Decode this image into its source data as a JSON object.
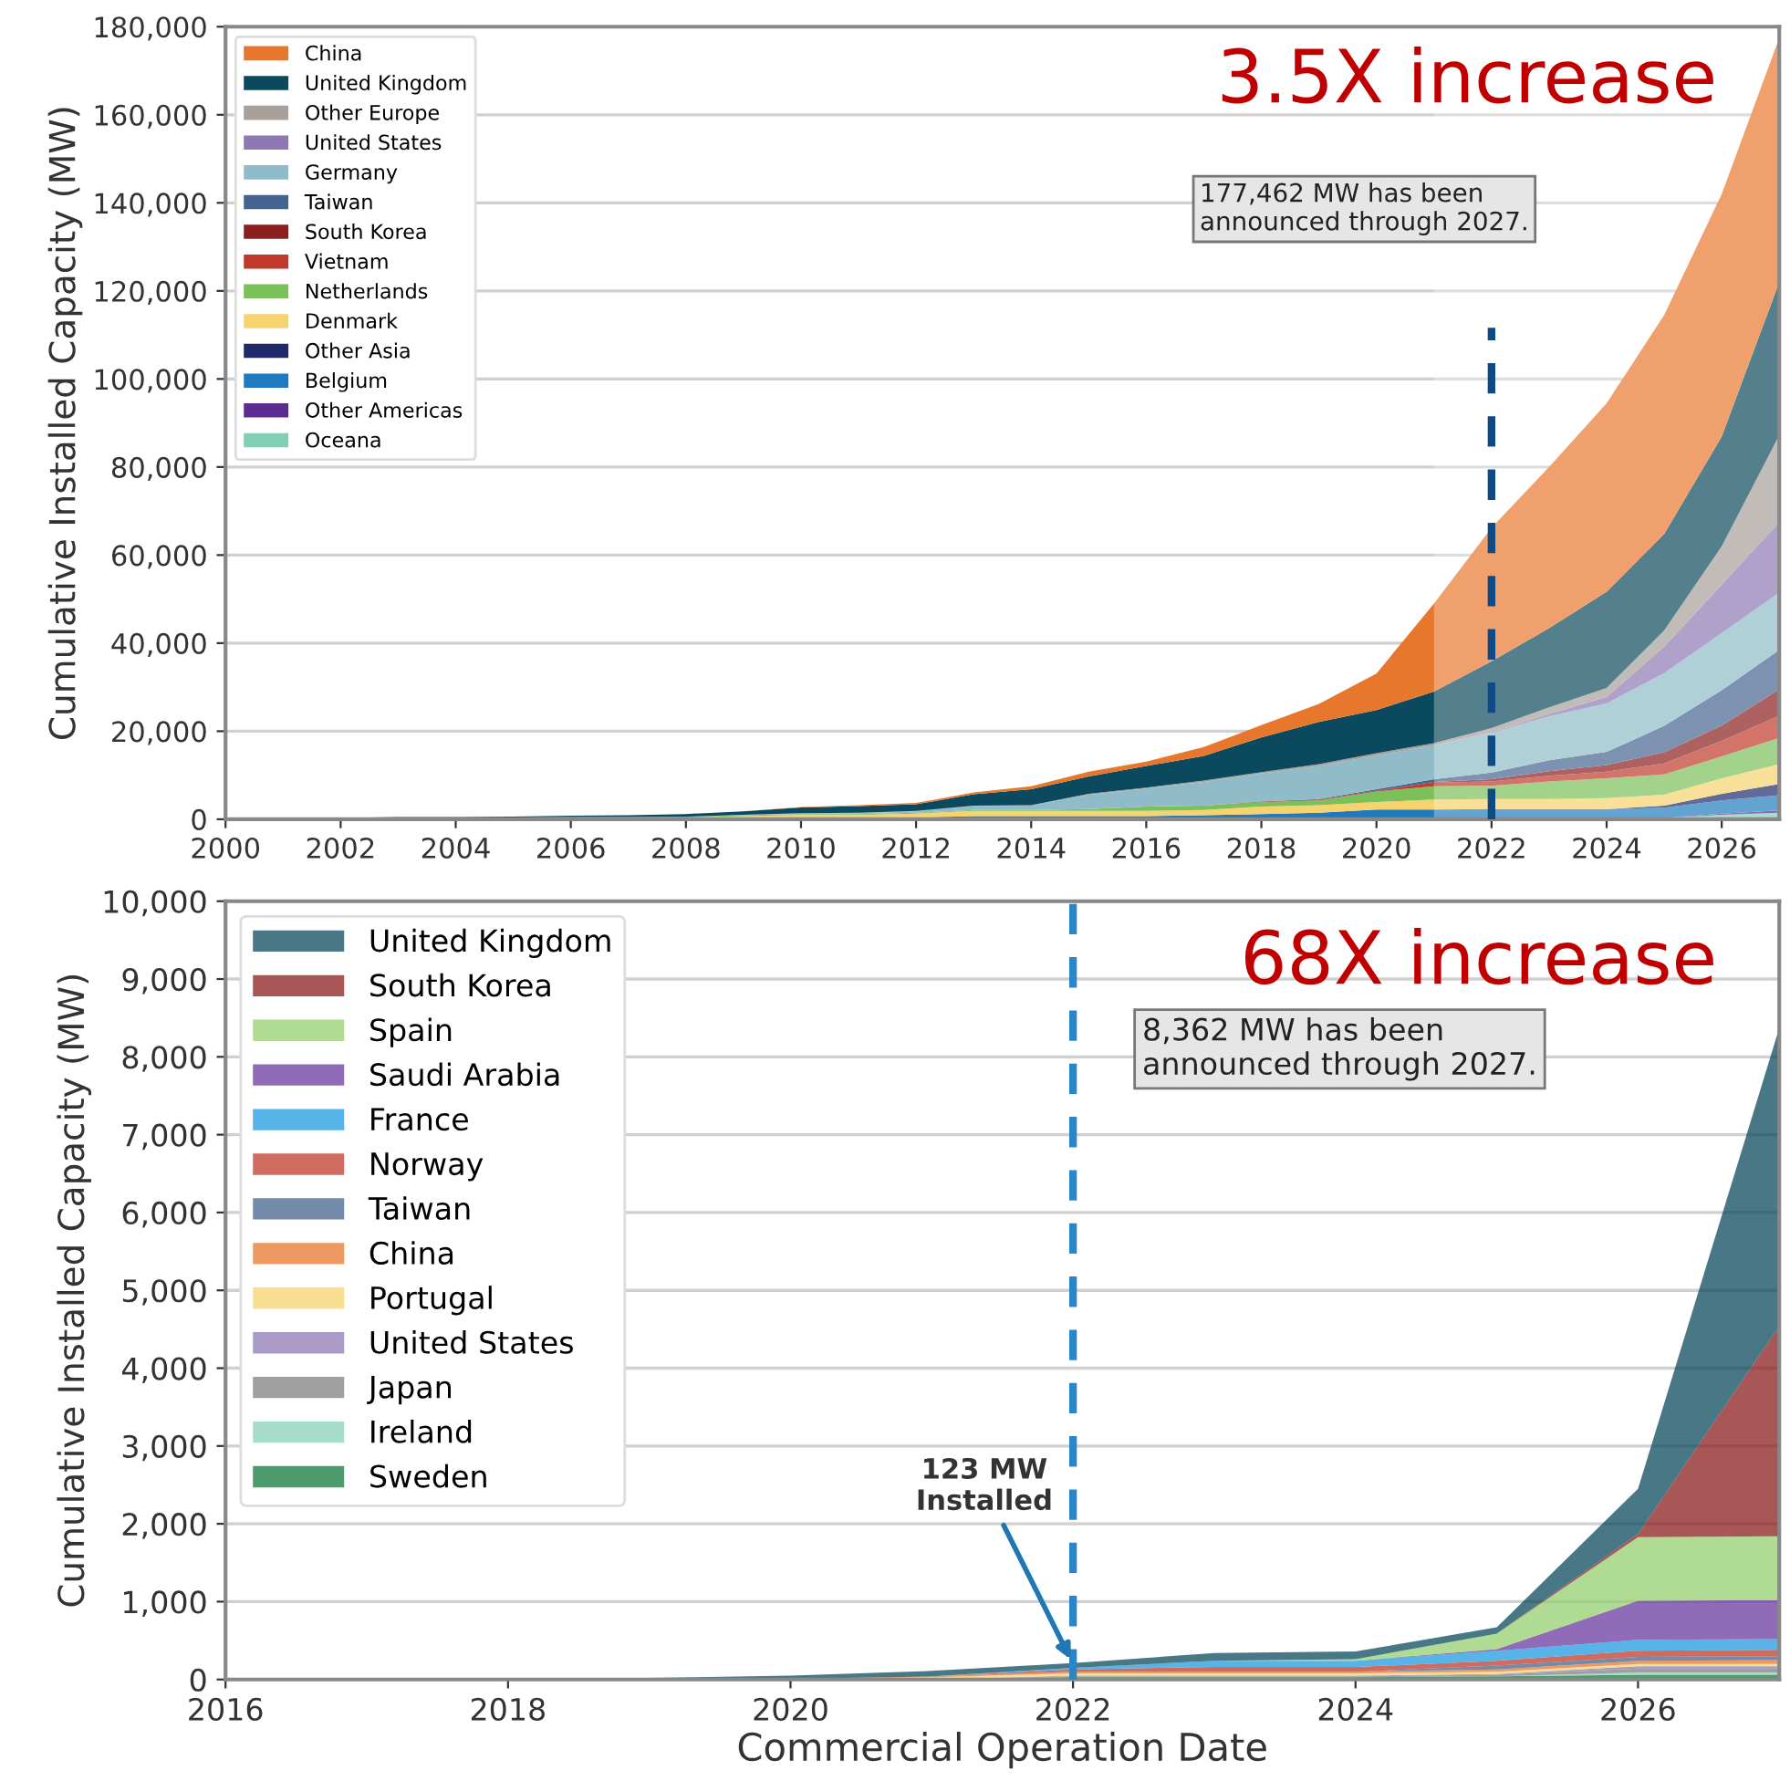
{
  "chart_data": [
    {
      "type": "area",
      "stacked": true,
      "ylabel": "Cumulative Installed Capacity (MW)",
      "x": [
        2000,
        2001,
        2002,
        2003,
        2004,
        2005,
        2006,
        2007,
        2008,
        2009,
        2010,
        2011,
        2012,
        2013,
        2014,
        2015,
        2016,
        2017,
        2018,
        2019,
        2020,
        2021,
        2022,
        2023,
        2024,
        2025,
        2026,
        2027
      ],
      "series": [
        {
          "name": "Oceana",
          "color": "#7fd0b6",
          "values": [
            0,
            0,
            0,
            0,
            0,
            0,
            0,
            0,
            0,
            0,
            0,
            0,
            0,
            0,
            0,
            0,
            0,
            0,
            0,
            0,
            0,
            0,
            0,
            0,
            0,
            300,
            1000,
            1500
          ]
        },
        {
          "name": "Other Americas",
          "color": "#5b2d91",
          "values": [
            0,
            0,
            0,
            0,
            0,
            0,
            0,
            0,
            0,
            0,
            0,
            0,
            0,
            0,
            0,
            0,
            0,
            0,
            0,
            0,
            0,
            0,
            0,
            0,
            0,
            0,
            300,
            500
          ]
        },
        {
          "name": "Belgium",
          "color": "#1f7bbf",
          "values": [
            0,
            0,
            0,
            0,
            0,
            0,
            0,
            0,
            0,
            0,
            200,
            200,
            400,
            700,
            700,
            700,
            700,
            900,
            1200,
            1500,
            2200,
            2200,
            2300,
            2300,
            2300,
            2300,
            3000,
            3500
          ]
        },
        {
          "name": "Other Asia",
          "color": "#1f2a6b",
          "values": [
            0,
            0,
            0,
            0,
            0,
            0,
            0,
            0,
            0,
            0,
            0,
            0,
            0,
            0,
            0,
            0,
            0,
            0,
            0,
            0,
            0,
            0,
            0,
            0,
            0,
            500,
            1500,
            2500
          ]
        },
        {
          "name": "Denmark",
          "color": "#f6d36e",
          "values": [
            100,
            100,
            200,
            400,
            400,
            400,
            400,
            400,
            400,
            700,
            800,
            800,
            900,
            1200,
            1200,
            1200,
            1200,
            1200,
            1700,
            1700,
            1700,
            2300,
            2300,
            2300,
            2500,
            2500,
            3500,
            4500
          ]
        },
        {
          "name": "Netherlands",
          "color": "#7cc05a",
          "values": [
            0,
            0,
            0,
            0,
            0,
            0,
            100,
            100,
            200,
            200,
            200,
            200,
            200,
            200,
            200,
            400,
            1000,
            1000,
            1000,
            1100,
            2400,
            3000,
            3000,
            4000,
            4500,
            4600,
            5000,
            6000
          ]
        },
        {
          "name": "Vietnam",
          "color": "#c0392b",
          "values": [
            0,
            0,
            0,
            0,
            0,
            0,
            0,
            0,
            0,
            0,
            0,
            0,
            0,
            0,
            0,
            0,
            0,
            0,
            0,
            100,
            100,
            800,
            1000,
            1300,
            1500,
            2500,
            3500,
            5000
          ]
        },
        {
          "name": "South Korea",
          "color": "#8b1e1e",
          "values": [
            0,
            0,
            0,
            0,
            0,
            0,
            0,
            0,
            0,
            0,
            0,
            0,
            0,
            0,
            0,
            0,
            0,
            0,
            100,
            100,
            100,
            200,
            500,
            1000,
            1500,
            2500,
            3500,
            6000
          ]
        },
        {
          "name": "Taiwan",
          "color": "#46638f",
          "values": [
            0,
            0,
            0,
            0,
            0,
            0,
            0,
            0,
            0,
            0,
            0,
            0,
            0,
            0,
            0,
            0,
            0,
            0,
            0,
            100,
            300,
            600,
            1500,
            2500,
            3000,
            6000,
            8000,
            9000
          ]
        },
        {
          "name": "Germany",
          "color": "#8fbcc8",
          "values": [
            0,
            0,
            0,
            0,
            0,
            0,
            0,
            0,
            0,
            100,
            100,
            200,
            300,
            900,
            1000,
            3300,
            4100,
            5400,
            6400,
            7500,
            7700,
            7700,
            9000,
            10000,
            11000,
            12000,
            13000,
            13000
          ]
        },
        {
          "name": "United States",
          "color": "#8e79b3",
          "values": [
            0,
            0,
            0,
            0,
            0,
            0,
            0,
            0,
            0,
            0,
            0,
            0,
            0,
            0,
            0,
            0,
            0,
            0,
            0,
            0,
            0,
            0,
            100,
            500,
            1500,
            6000,
            11000,
            16000
          ]
        },
        {
          "name": "Other Europe",
          "color": "#a8a09a",
          "values": [
            0,
            0,
            0,
            0,
            0,
            0,
            0,
            0,
            0,
            0,
            100,
            100,
            100,
            100,
            100,
            200,
            200,
            300,
            300,
            400,
            500,
            500,
            1000,
            1500,
            2000,
            3700,
            8700,
            19700
          ]
        },
        {
          "name": "United Kingdom",
          "color": "#0b4a5e",
          "values": [
            100,
            100,
            100,
            100,
            100,
            200,
            300,
            400,
            600,
            800,
            1300,
            1500,
            1500,
            2600,
            3600,
            3900,
            4900,
            5600,
            7900,
            9600,
            9800,
            11700,
            15200,
            18000,
            21900,
            21900,
            24900,
            34800
          ]
        },
        {
          "name": "China",
          "color": "#e8772e",
          "values": [
            0,
            0,
            0,
            0,
            0,
            0,
            0,
            0,
            0,
            0,
            100,
            200,
            300,
            400,
            700,
            1100,
            1000,
            2000,
            2800,
            4100,
            8300,
            20000,
            30300,
            36600,
            42800,
            49700,
            55100,
            55462
          ]
        }
      ],
      "xlim": [
        2000,
        2027
      ],
      "xticks": [
        2000,
        2002,
        2004,
        2006,
        2008,
        2010,
        2012,
        2014,
        2016,
        2018,
        2020,
        2022,
        2024,
        2026
      ],
      "ylim": [
        0,
        180000
      ],
      "yticks": [
        {
          "value": 0,
          "label": "0"
        },
        {
          "value": 20000,
          "label": "20,000"
        },
        {
          "value": 40000,
          "label": "40,000"
        },
        {
          "value": 60000,
          "label": "60,000"
        },
        {
          "value": 80000,
          "label": "80,000"
        },
        {
          "value": 100000,
          "label": "100,000"
        },
        {
          "value": 120000,
          "label": "120,000"
        },
        {
          "value": 140000,
          "label": "140,000"
        },
        {
          "value": 160000,
          "label": "160,000"
        },
        {
          "value": 180000,
          "label": "180,000"
        }
      ],
      "grid": "y",
      "legend": "top left",
      "ref_lines": [
        {
          "axis": "x",
          "value": 2022,
          "color": "#0d4a86",
          "line_style": "dashed"
        }
      ],
      "bands": [
        {
          "axis": "x",
          "from": 2021,
          "to": 2027,
          "color": "#ffffff"
        }
      ],
      "annotations": [
        "3.5X increase",
        "177,462 MW has been\nannounced through 2027."
      ]
    },
    {
      "type": "area",
      "stacked": true,
      "ylabel": "Cumulative Installed Capacity (MW)",
      "xlabel": "Commercial Operation Date",
      "x": [
        2016,
        2017,
        2018,
        2019,
        2020,
        2021,
        2022,
        2023,
        2024,
        2025,
        2026,
        2027
      ],
      "series": [
        {
          "name": "Sweden",
          "color": "#137a3e",
          "values": [
            0,
            0,
            0,
            0,
            0,
            0,
            30,
            30,
            30,
            40,
            60,
            60
          ]
        },
        {
          "name": "Ireland",
          "color": "#88d1b8",
          "values": [
            0,
            0,
            0,
            0,
            0,
            0,
            0,
            0,
            0,
            0,
            30,
            30
          ]
        },
        {
          "name": "Japan",
          "color": "#7f7f7f",
          "values": [
            0,
            0,
            0,
            0,
            0,
            0,
            10,
            10,
            10,
            20,
            50,
            50
          ]
        },
        {
          "name": "United States",
          "color": "#8e79b3",
          "values": [
            0,
            0,
            0,
            0,
            0,
            0,
            10,
            10,
            10,
            10,
            30,
            30
          ]
        },
        {
          "name": "Portugal",
          "color": "#f6d36e",
          "values": [
            0,
            0,
            0,
            0,
            0,
            30,
            30,
            30,
            30,
            30,
            30,
            30
          ]
        },
        {
          "name": "China",
          "color": "#e8772e",
          "values": [
            0,
            0,
            0,
            0,
            10,
            10,
            20,
            20,
            20,
            30,
            40,
            50
          ]
        },
        {
          "name": "Taiwan",
          "color": "#46638f",
          "values": [
            0,
            0,
            0,
            0,
            0,
            0,
            0,
            0,
            0,
            50,
            50,
            50
          ]
        },
        {
          "name": "Norway",
          "color": "#c0392b",
          "values": [
            0,
            0,
            0,
            0,
            0,
            0,
            30,
            60,
            60,
            60,
            80,
            80
          ]
        },
        {
          "name": "France",
          "color": "#1e9be0",
          "values": [
            0,
            0,
            0,
            0,
            0,
            0,
            20,
            80,
            80,
            130,
            140,
            140
          ]
        },
        {
          "name": "Saudi Arabia",
          "color": "#6a3aa0",
          "values": [
            0,
            0,
            0,
            0,
            0,
            0,
            0,
            0,
            0,
            20,
            500,
            500
          ]
        },
        {
          "name": "Spain",
          "color": "#95cf6e",
          "values": [
            0,
            0,
            0,
            0,
            0,
            0,
            0,
            0,
            20,
            200,
            820,
            820
          ]
        },
        {
          "name": "South Korea",
          "color": "#8b1e1e",
          "values": [
            0,
            0,
            0,
            0,
            0,
            0,
            0,
            0,
            0,
            0,
            40,
            2700
          ]
        },
        {
          "name": "United Kingdom",
          "color": "#0b4a5e",
          "values": [
            10,
            10,
            20,
            20,
            40,
            70,
            60,
            100,
            100,
            80,
            580,
            3830
          ]
        }
      ],
      "xlim": [
        2016,
        2027
      ],
      "xticks": [
        2016,
        2018,
        2020,
        2022,
        2024,
        2026
      ],
      "ylim": [
        0,
        10000
      ],
      "yticks": [
        {
          "value": 0,
          "label": "0"
        },
        {
          "value": 1000,
          "label": "1,000"
        },
        {
          "value": 2000,
          "label": "2,000"
        },
        {
          "value": 3000,
          "label": "3,000"
        },
        {
          "value": 4000,
          "label": "4,000"
        },
        {
          "value": 5000,
          "label": "5,000"
        },
        {
          "value": 6000,
          "label": "6,000"
        },
        {
          "value": 7000,
          "label": "7,000"
        },
        {
          "value": 8000,
          "label": "8,000"
        },
        {
          "value": 9000,
          "label": "9,000"
        },
        {
          "value": 10000,
          "label": "10,000"
        }
      ],
      "grid": "y",
      "legend": "top left",
      "ref_lines": [
        {
          "axis": "x",
          "value": 2022,
          "color": "#2a86c8",
          "line_style": "dashed"
        }
      ],
      "annotations": [
        "68X increase",
        "8,362 MW has been\nannounced through 2027.",
        {
          "text": "123 MW\nInstalled",
          "x": 2022,
          "y": 200
        }
      ]
    }
  ]
}
